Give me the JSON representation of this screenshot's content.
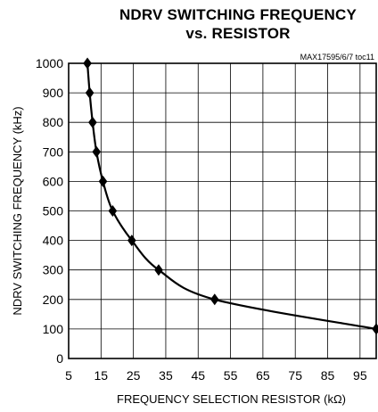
{
  "figure_id": "MAX17595/6/7 toc11",
  "chart_data": {
    "type": "line",
    "title": [
      "NDRV SWITCHING FREQUENCY",
      "vs. RESISTOR"
    ],
    "xlabel": "FREQUENCY SELECTION RESISTOR (kΩ)",
    "ylabel": "NDRV SWITCHING FREQUENCY (kHz)",
    "xlim": [
      5,
      100
    ],
    "ylim": [
      0,
      1000
    ],
    "xticks": [
      "5",
      "15",
      "25",
      "35",
      "45",
      "55",
      "65",
      "75",
      "85",
      "95"
    ],
    "yticks": [
      "0",
      "100",
      "200",
      "300",
      "400",
      "500",
      "600",
      "700",
      "800",
      "900",
      "1000"
    ],
    "grid": true,
    "series": [
      {
        "marker": "diamond",
        "x": [
          10.8,
          11.5,
          12.4,
          13.6,
          15.6,
          18.6,
          24.5,
          32.8,
          50.1,
          100
        ],
        "y": [
          1000,
          900,
          800,
          700,
          600,
          500,
          400,
          300,
          200,
          100
        ]
      }
    ]
  }
}
